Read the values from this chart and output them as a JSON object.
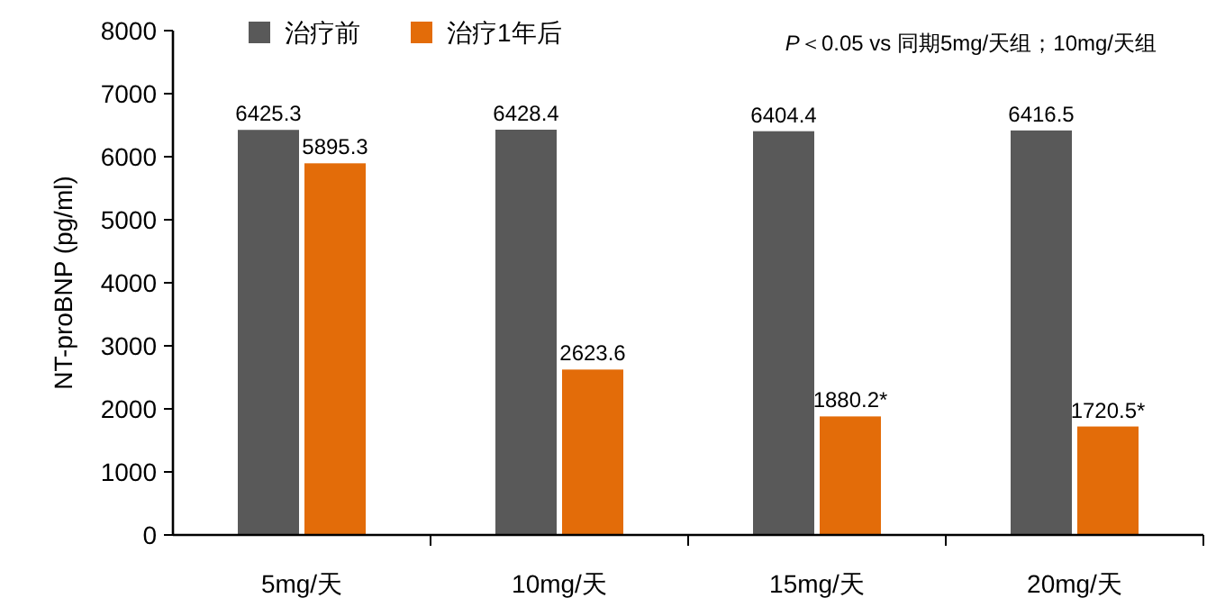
{
  "chart_data": {
    "type": "bar",
    "ylabel": "NT-proBNP (pg/ml)",
    "categories": [
      "5mg/天",
      "10mg/天",
      "15mg/天",
      "20mg/天"
    ],
    "series": [
      {
        "name": "治疗前",
        "color": "#595959",
        "values": [
          6425.3,
          6428.4,
          6404.4,
          6416.5
        ],
        "value_labels": [
          "6425.3",
          "6428.4",
          "6404.4",
          "6416.5"
        ]
      },
      {
        "name": "治疗1年后",
        "color": "#e36c09",
        "values": [
          5895.3,
          2623.6,
          1880.2,
          1720.5
        ],
        "value_labels": [
          "5895.3",
          "2623.6",
          "1880.2*",
          "1720.5*"
        ]
      }
    ],
    "ylim": [
      0,
      8000
    ],
    "yticks": [
      0,
      1000,
      2000,
      3000,
      4000,
      5000,
      6000,
      7000,
      8000
    ],
    "grid": false,
    "legend": "top",
    "annotations": [
      "P＜0.05 vs 同期5mg/天组；10mg/天组"
    ]
  }
}
